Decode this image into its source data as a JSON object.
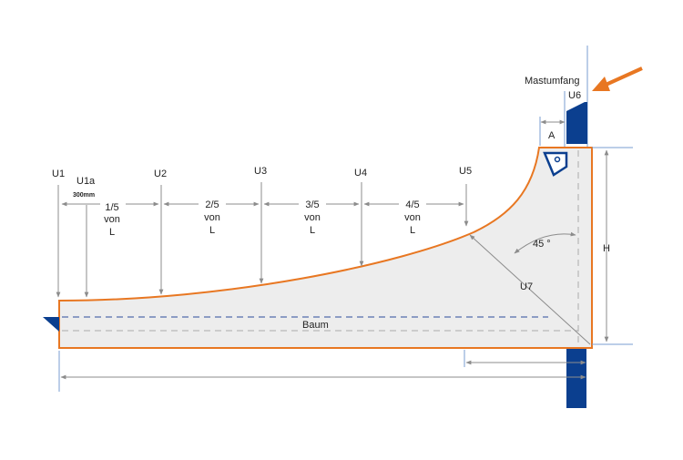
{
  "diagram": {
    "labels": {
      "u1": "U1",
      "u1a": "U1a",
      "u1a_note": "300mm",
      "u2": "U2",
      "u3": "U3",
      "u4": "U4",
      "u5": "U5",
      "u6": "U6",
      "u7": "U7",
      "mastumfang": "Mastumfang",
      "a": "A",
      "h": "H",
      "baum": "Baum",
      "angle": "45 °"
    },
    "fractions": [
      {
        "frac": "1/5",
        "von": "von",
        "l": "L"
      },
      {
        "frac": "2/5",
        "von": "von",
        "l": "L"
      },
      {
        "frac": "3/5",
        "von": "von",
        "l": "L"
      },
      {
        "frac": "4/5",
        "von": "von",
        "l": "L"
      }
    ],
    "colors": {
      "outline": "#E87722",
      "mast": "#0B3F8F",
      "guide": "#7A9CD0",
      "sail_fill": "#EDEDED",
      "dim": "#8C8C8C",
      "boom_dash": "#2B4C9B",
      "arrow": "#E87722"
    },
    "icons": {
      "mast_arrow": "arrow-pointer-icon",
      "clew": "clew-triangle-icon",
      "tack": "tack-fitting-icon"
    }
  }
}
